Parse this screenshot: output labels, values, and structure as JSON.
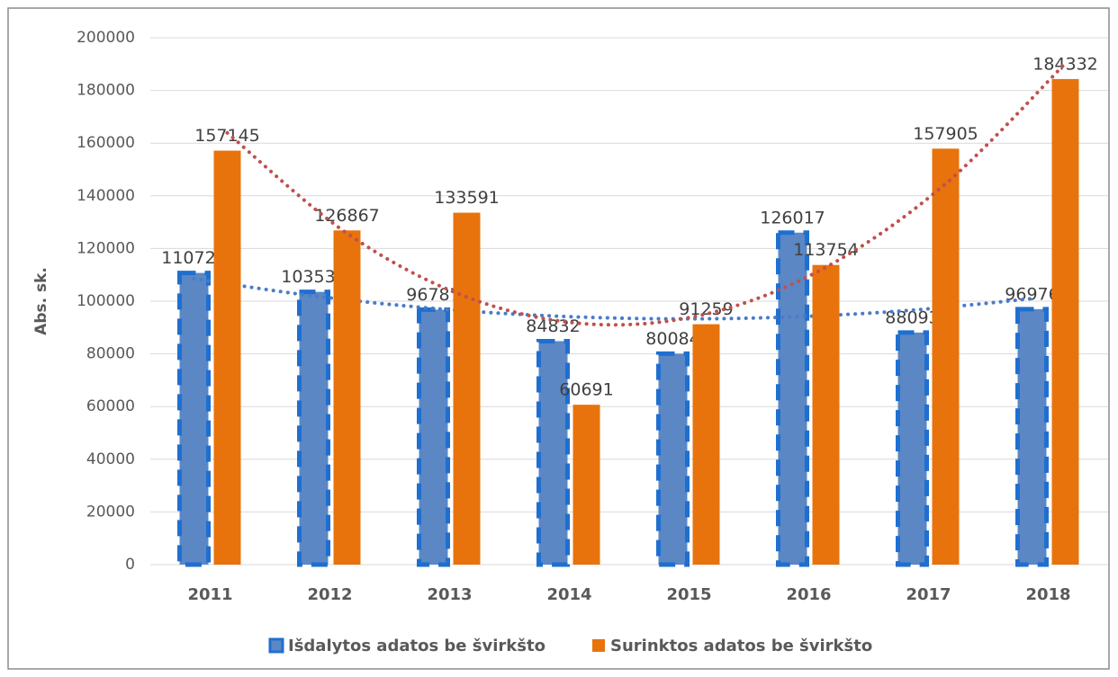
{
  "chart_data": {
    "type": "bar",
    "y_label": "Abs. sk.",
    "categories": [
      "2011",
      "2012",
      "2013",
      "2014",
      "2015",
      "2016",
      "2017",
      "2018"
    ],
    "series": [
      {
        "name": "Išdalytos adatos be švirkšto",
        "color": "#5b87c5",
        "trendline_color": "#4a7cc7",
        "values": [
          110726,
          103536,
          96787,
          84832,
          80084,
          126017,
          88093,
          96976
        ]
      },
      {
        "name": "Surinktos adatos be švirkšto",
        "color": "#e8730c",
        "trendline_color": "#c0504d",
        "values": [
          157145,
          126867,
          133591,
          60691,
          91259,
          113754,
          157905,
          184332
        ]
      }
    ],
    "ylim": [
      0,
      200000
    ],
    "yticks": [
      0,
      20000,
      40000,
      60000,
      80000,
      100000,
      120000,
      140000,
      160000,
      180000,
      200000
    ],
    "grid": true,
    "trendline": true,
    "legend": "bottom"
  }
}
